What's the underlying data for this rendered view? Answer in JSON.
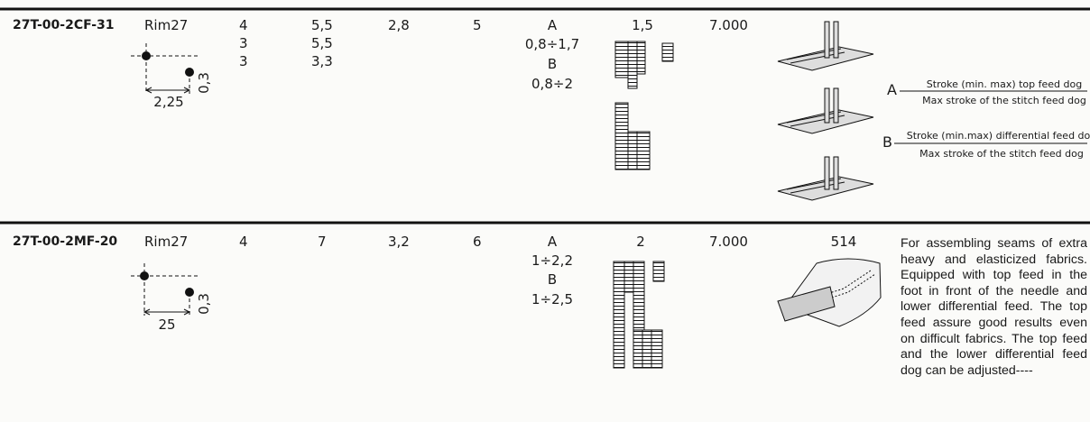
{
  "table": {
    "rows": [
      {
        "code": "27T-00-2CF-31",
        "model": "Rim27",
        "dim_h": "2,25",
        "dim_v": "0,3",
        "col3": [
          "4",
          "3",
          "3"
        ],
        "col4": [
          "5,5",
          "5,5",
          "3,3"
        ],
        "col5": "2,8",
        "col6": "5",
        "feed": [
          "A",
          "0,8÷1,7",
          "B",
          "0,8÷2"
        ],
        "col8": "1,5",
        "col9": "7.000",
        "legend": [
          {
            "letter": "A",
            "top": "Stroke (min. max) top feed dog",
            "bottom": "Max stroke of the stitch feed dog"
          },
          {
            "letter": "B",
            "top": "Stroke (min.max) differential feed dog",
            "bottom": "Max stroke of the stitch feed dog"
          }
        ]
      },
      {
        "code": "27T-00-2MF-20",
        "model": "Rim27",
        "dim_h": "25",
        "dim_v": "0,3",
        "col3": [
          "4"
        ],
        "col4": [
          "7"
        ],
        "col5": "3,2",
        "col6": "6",
        "feed": [
          "A",
          "1÷2,2",
          "B",
          "1÷2,5"
        ],
        "col8": "2",
        "col9": "7.000",
        "stitch": "514",
        "description": "For assembling seams of extra heavy and elasticized fabrics. Equipped with top feed in the foot in front of the needle and lower differential feed. The top feed assure good results even on difficult fabrics. The top feed and the lower differential feed dog can be adjusted----"
      }
    ]
  }
}
